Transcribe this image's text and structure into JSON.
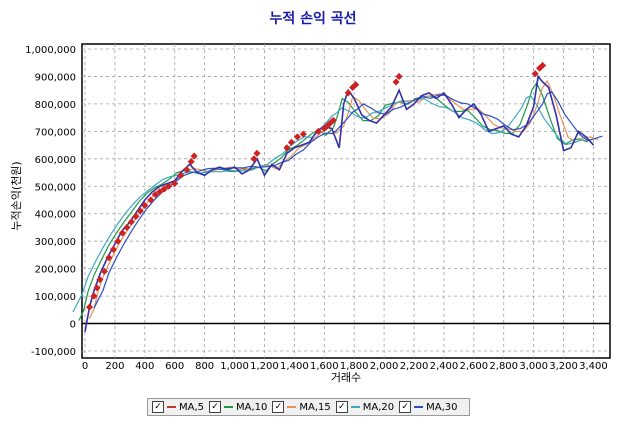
{
  "chart_data": {
    "type": "line",
    "title": "누적 손익 곡선",
    "xlabel": "거래수",
    "ylabel": "누적손익(천원)",
    "xlim": [
      0,
      3500
    ],
    "ylim": [
      -100000,
      1000000
    ],
    "x_ticks": [
      "0",
      "200",
      "400",
      "600",
      "800",
      "1,000",
      "1,200",
      "1,400",
      "1,600",
      "1,800",
      "2,000",
      "2,200",
      "2,400",
      "2,600",
      "2,800",
      "3,000",
      "3,200",
      "3,400"
    ],
    "x_tick_values": [
      0,
      200,
      400,
      600,
      800,
      1000,
      1200,
      1400,
      1600,
      1800,
      2000,
      2200,
      2400,
      2600,
      2800,
      3000,
      3200,
      3400
    ],
    "y_ticks": [
      "1,000,000",
      "900,000",
      "800,000",
      "700,000",
      "600,000",
      "500,000",
      "400,000",
      "300,000",
      "200,000",
      "100,000",
      "0",
      "-100,000"
    ],
    "y_tick_values": [
      1000000,
      900000,
      800000,
      700000,
      600000,
      500000,
      400000,
      300000,
      200000,
      100000,
      0,
      -100000
    ],
    "grid": true,
    "legend_position": "bottom",
    "series": [
      {
        "name": "MA,5",
        "color": "#c0392b"
      },
      {
        "name": "MA,10",
        "color": "#1e9a48"
      },
      {
        "name": "MA,15",
        "color": "#e8925a"
      },
      {
        "name": "MA,20",
        "color": "#3fa7c4"
      },
      {
        "name": "MA,30",
        "color": "#2c4fc7"
      }
    ],
    "equity": {
      "color": "#3333aa",
      "x": [
        0,
        30,
        60,
        100,
        150,
        200,
        250,
        300,
        350,
        400,
        450,
        500,
        550,
        600,
        650,
        700,
        750,
        800,
        850,
        900,
        950,
        1000,
        1050,
        1100,
        1150,
        1200,
        1250,
        1300,
        1350,
        1400,
        1450,
        1500,
        1550,
        1600,
        1650,
        1700,
        1730,
        1760,
        1800,
        1850,
        1900,
        1950,
        2000,
        2050,
        2100,
        2150,
        2200,
        2250,
        2300,
        2350,
        2400,
        2450,
        2500,
        2550,
        2600,
        2650,
        2700,
        2750,
        2800,
        2850,
        2900,
        2950,
        3000,
        3030,
        3060,
        3100,
        3150,
        3200,
        3250,
        3300,
        3350,
        3400
      ],
      "y": [
        -30000,
        60000,
        120000,
        180000,
        240000,
        290000,
        340000,
        370000,
        410000,
        450000,
        480000,
        500000,
        510000,
        520000,
        555000,
        580000,
        550000,
        540000,
        560000,
        570000,
        560000,
        570000,
        545000,
        560000,
        600000,
        540000,
        580000,
        560000,
        620000,
        640000,
        650000,
        660000,
        700000,
        720000,
        710000,
        640000,
        800000,
        850000,
        820000,
        760000,
        740000,
        730000,
        760000,
        790000,
        850000,
        780000,
        800000,
        830000,
        840000,
        820000,
        840000,
        800000,
        750000,
        780000,
        800000,
        760000,
        700000,
        710000,
        720000,
        690000,
        680000,
        720000,
        790000,
        900000,
        880000,
        860000,
        760000,
        630000,
        640000,
        700000,
        680000,
        650000
      ]
    },
    "peaks": {
      "color": "#cc2222",
      "x": [
        30,
        60,
        80,
        100,
        130,
        160,
        190,
        220,
        250,
        280,
        310,
        340,
        370,
        400,
        440,
        470,
        500,
        530,
        560,
        600,
        640,
        680,
        710,
        730,
        1130,
        1150,
        1350,
        1380,
        1420,
        1460,
        1560,
        1600,
        1620,
        1640,
        1660,
        1760,
        1790,
        1810,
        2080,
        2100,
        3010,
        3040,
        3060
      ],
      "y": [
        60000,
        100000,
        130000,
        160000,
        190000,
        240000,
        270000,
        300000,
        330000,
        350000,
        370000,
        390000,
        410000,
        430000,
        450000,
        470000,
        480000,
        490000,
        500000,
        510000,
        540000,
        560000,
        590000,
        610000,
        600000,
        620000,
        640000,
        660000,
        680000,
        690000,
        700000,
        710000,
        720000,
        730000,
        740000,
        840000,
        860000,
        870000,
        880000,
        900000,
        910000,
        930000,
        940000
      ]
    }
  }
}
